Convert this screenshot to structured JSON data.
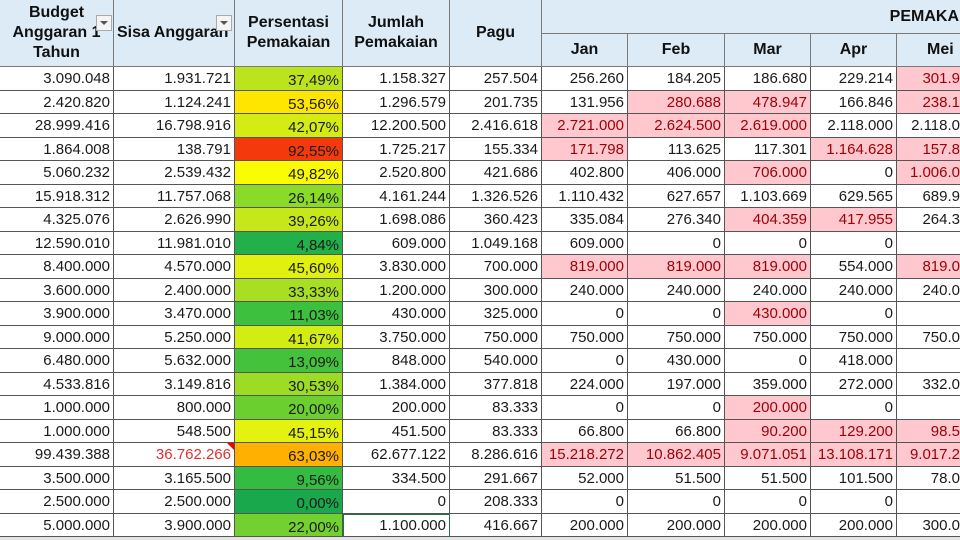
{
  "headers": {
    "budget": "Budget Anggaran 1 Tahun",
    "sisa": "Sisa Anggaran",
    "persentasi": "Persentasi Pemakaian",
    "jumlah": "Jumlah Pemakaian",
    "pagu": "Pagu",
    "group": "PEMAKA",
    "months": [
      "Jan",
      "Feb",
      "Mar",
      "Apr",
      "Mei"
    ]
  },
  "colors": {
    "highlight_bg": "#ffc7ce",
    "highlight_text": "#9c0006",
    "header_bg": "#ddebf7",
    "negative_text": "#e03030"
  },
  "rows": [
    {
      "budget": "3.090.048",
      "sisa": "1.931.721",
      "pct": "37,49%",
      "pct_color": "#bce41c",
      "jumlah": "1.158.327",
      "pagu": "257.504",
      "months": [
        "256.260",
        "184.205",
        "186.680",
        "229.214",
        "301.9"
      ],
      "red": [
        0,
        0,
        0,
        0,
        1
      ]
    },
    {
      "budget": "2.420.820",
      "sisa": "1.124.241",
      "pct": "53,56%",
      "pct_color": "#ffe600",
      "jumlah": "1.296.579",
      "pagu": "201.735",
      "months": [
        "131.956",
        "280.688",
        "478.947",
        "166.846",
        "238.1"
      ],
      "red": [
        0,
        1,
        1,
        0,
        1
      ]
    },
    {
      "budget": "28.999.416",
      "sisa": "16.798.916",
      "pct": "42,07%",
      "pct_color": "#d4ec14",
      "jumlah": "12.200.500",
      "pagu": "2.416.618",
      "months": [
        "2.721.000",
        "2.624.500",
        "2.619.000",
        "2.118.000",
        "2.118.0"
      ],
      "red": [
        1,
        1,
        1,
        0,
        0
      ]
    },
    {
      "budget": "1.864.008",
      "sisa": "138.791",
      "pct": "92,55%",
      "pct_color": "#f43a0c",
      "jumlah": "1.725.217",
      "pagu": "155.334",
      "months": [
        "171.798",
        "113.625",
        "117.301",
        "1.164.628",
        "157.8"
      ],
      "red": [
        1,
        0,
        0,
        1,
        1
      ]
    },
    {
      "budget": "5.060.232",
      "sisa": "2.539.432",
      "pct": "49,82%",
      "pct_color": "#fafa00",
      "jumlah": "2.520.800",
      "pagu": "421.686",
      "months": [
        "402.800",
        "406.000",
        "706.000",
        "0",
        "1.006.0"
      ],
      "red": [
        0,
        0,
        1,
        0,
        1
      ]
    },
    {
      "budget": "15.918.312",
      "sisa": "11.757.068",
      "pct": "26,14%",
      "pct_color": "#8ada28",
      "jumlah": "4.161.244",
      "pagu": "1.326.526",
      "months": [
        "1.110.432",
        "627.657",
        "1.103.669",
        "629.565",
        "689.9"
      ],
      "red": [
        0,
        0,
        0,
        0,
        0
      ]
    },
    {
      "budget": "4.325.076",
      "sisa": "2.626.990",
      "pct": "39,26%",
      "pct_color": "#c6e81a",
      "jumlah": "1.698.086",
      "pagu": "360.423",
      "months": [
        "335.084",
        "276.340",
        "404.359",
        "417.955",
        "264.3"
      ],
      "red": [
        0,
        0,
        1,
        1,
        0
      ]
    },
    {
      "budget": "12.590.010",
      "sisa": "11.981.010",
      "pct": "4,84%",
      "pct_color": "#22b04a",
      "jumlah": "609.000",
      "pagu": "1.049.168",
      "months": [
        "609.000",
        "0",
        "0",
        "0",
        ""
      ],
      "red": [
        0,
        0,
        0,
        0,
        0
      ]
    },
    {
      "budget": "8.400.000",
      "sisa": "4.570.000",
      "pct": "45,60%",
      "pct_color": "#e2f010",
      "jumlah": "3.830.000",
      "pagu": "700.000",
      "months": [
        "819.000",
        "819.000",
        "819.000",
        "554.000",
        "819.0"
      ],
      "red": [
        1,
        1,
        1,
        0,
        1
      ]
    },
    {
      "budget": "3.600.000",
      "sisa": "2.400.000",
      "pct": "33,33%",
      "pct_color": "#a8df22",
      "jumlah": "1.200.000",
      "pagu": "300.000",
      "months": [
        "240.000",
        "240.000",
        "240.000",
        "240.000",
        "240.0"
      ],
      "red": [
        0,
        0,
        0,
        0,
        0
      ]
    },
    {
      "budget": "3.900.000",
      "sisa": "3.470.000",
      "pct": "11,03%",
      "pct_color": "#3cc03e",
      "jumlah": "430.000",
      "pagu": "325.000",
      "months": [
        "0",
        "0",
        "430.000",
        "0",
        ""
      ],
      "red": [
        0,
        0,
        1,
        0,
        0
      ]
    },
    {
      "budget": "9.000.000",
      "sisa": "5.250.000",
      "pct": "41,67%",
      "pct_color": "#d2ec14",
      "jumlah": "3.750.000",
      "pagu": "750.000",
      "months": [
        "750.000",
        "750.000",
        "750.000",
        "750.000",
        "750.0"
      ],
      "red": [
        0,
        0,
        0,
        0,
        0
      ]
    },
    {
      "budget": "6.480.000",
      "sisa": "5.632.000",
      "pct": "13,09%",
      "pct_color": "#44c23c",
      "jumlah": "848.000",
      "pagu": "540.000",
      "months": [
        "0",
        "430.000",
        "0",
        "418.000",
        ""
      ],
      "red": [
        0,
        0,
        0,
        0,
        0
      ]
    },
    {
      "budget": "4.533.816",
      "sisa": "3.149.816",
      "pct": "30,53%",
      "pct_color": "#9cdc24",
      "jumlah": "1.384.000",
      "pagu": "377.818",
      "months": [
        "224.000",
        "197.000",
        "359.000",
        "272.000",
        "332.0"
      ],
      "red": [
        0,
        0,
        0,
        0,
        0
      ]
    },
    {
      "budget": "1.000.000",
      "sisa": "800.000",
      "pct": "20,00%",
      "pct_color": "#6ccf30",
      "jumlah": "200.000",
      "pagu": "83.333",
      "months": [
        "0",
        "0",
        "200.000",
        "0",
        ""
      ],
      "red": [
        0,
        0,
        1,
        0,
        0
      ]
    },
    {
      "budget": "1.000.000",
      "sisa": "548.500",
      "pct": "45,15%",
      "pct_color": "#e4f210",
      "jumlah": "451.500",
      "pagu": "83.333",
      "months": [
        "66.800",
        "66.800",
        "90.200",
        "129.200",
        "98.5"
      ],
      "red": [
        0,
        0,
        1,
        1,
        1
      ]
    },
    {
      "budget": "99.439.388",
      "sisa": "36.762.266",
      "pct": "63,03%",
      "pct_color": "#ffb000",
      "jumlah": "62.677.122",
      "pagu": "8.286.616",
      "months": [
        "15.218.272",
        "10.862.405",
        "9.071.051",
        "13.108.171",
        "9.017.2"
      ],
      "red": [
        1,
        1,
        1,
        1,
        1
      ],
      "sisa_negative": true
    },
    {
      "budget": "3.500.000",
      "sisa": "3.165.500",
      "pct": "9,56%",
      "pct_color": "#34bc42",
      "jumlah": "334.500",
      "pagu": "291.667",
      "months": [
        "52.000",
        "51.500",
        "51.500",
        "101.500",
        "78.0"
      ],
      "red": [
        0,
        0,
        0,
        0,
        0
      ]
    },
    {
      "budget": "2.500.000",
      "sisa": "2.500.000",
      "pct": "0,00%",
      "pct_color": "#1aa84c",
      "jumlah": "0",
      "pagu": "208.333",
      "months": [
        "0",
        "0",
        "0",
        "0",
        ""
      ],
      "red": [
        0,
        0,
        0,
        0,
        0
      ]
    },
    {
      "budget": "5.000.000",
      "sisa": "3.900.000",
      "pct": "22,00%",
      "pct_color": "#72d12e",
      "jumlah": "1.100.000",
      "pagu": "416.667",
      "months": [
        "200.000",
        "200.000",
        "200.000",
        "200.000",
        "300.0"
      ],
      "red": [
        0,
        0,
        0,
        0,
        0
      ]
    }
  ]
}
